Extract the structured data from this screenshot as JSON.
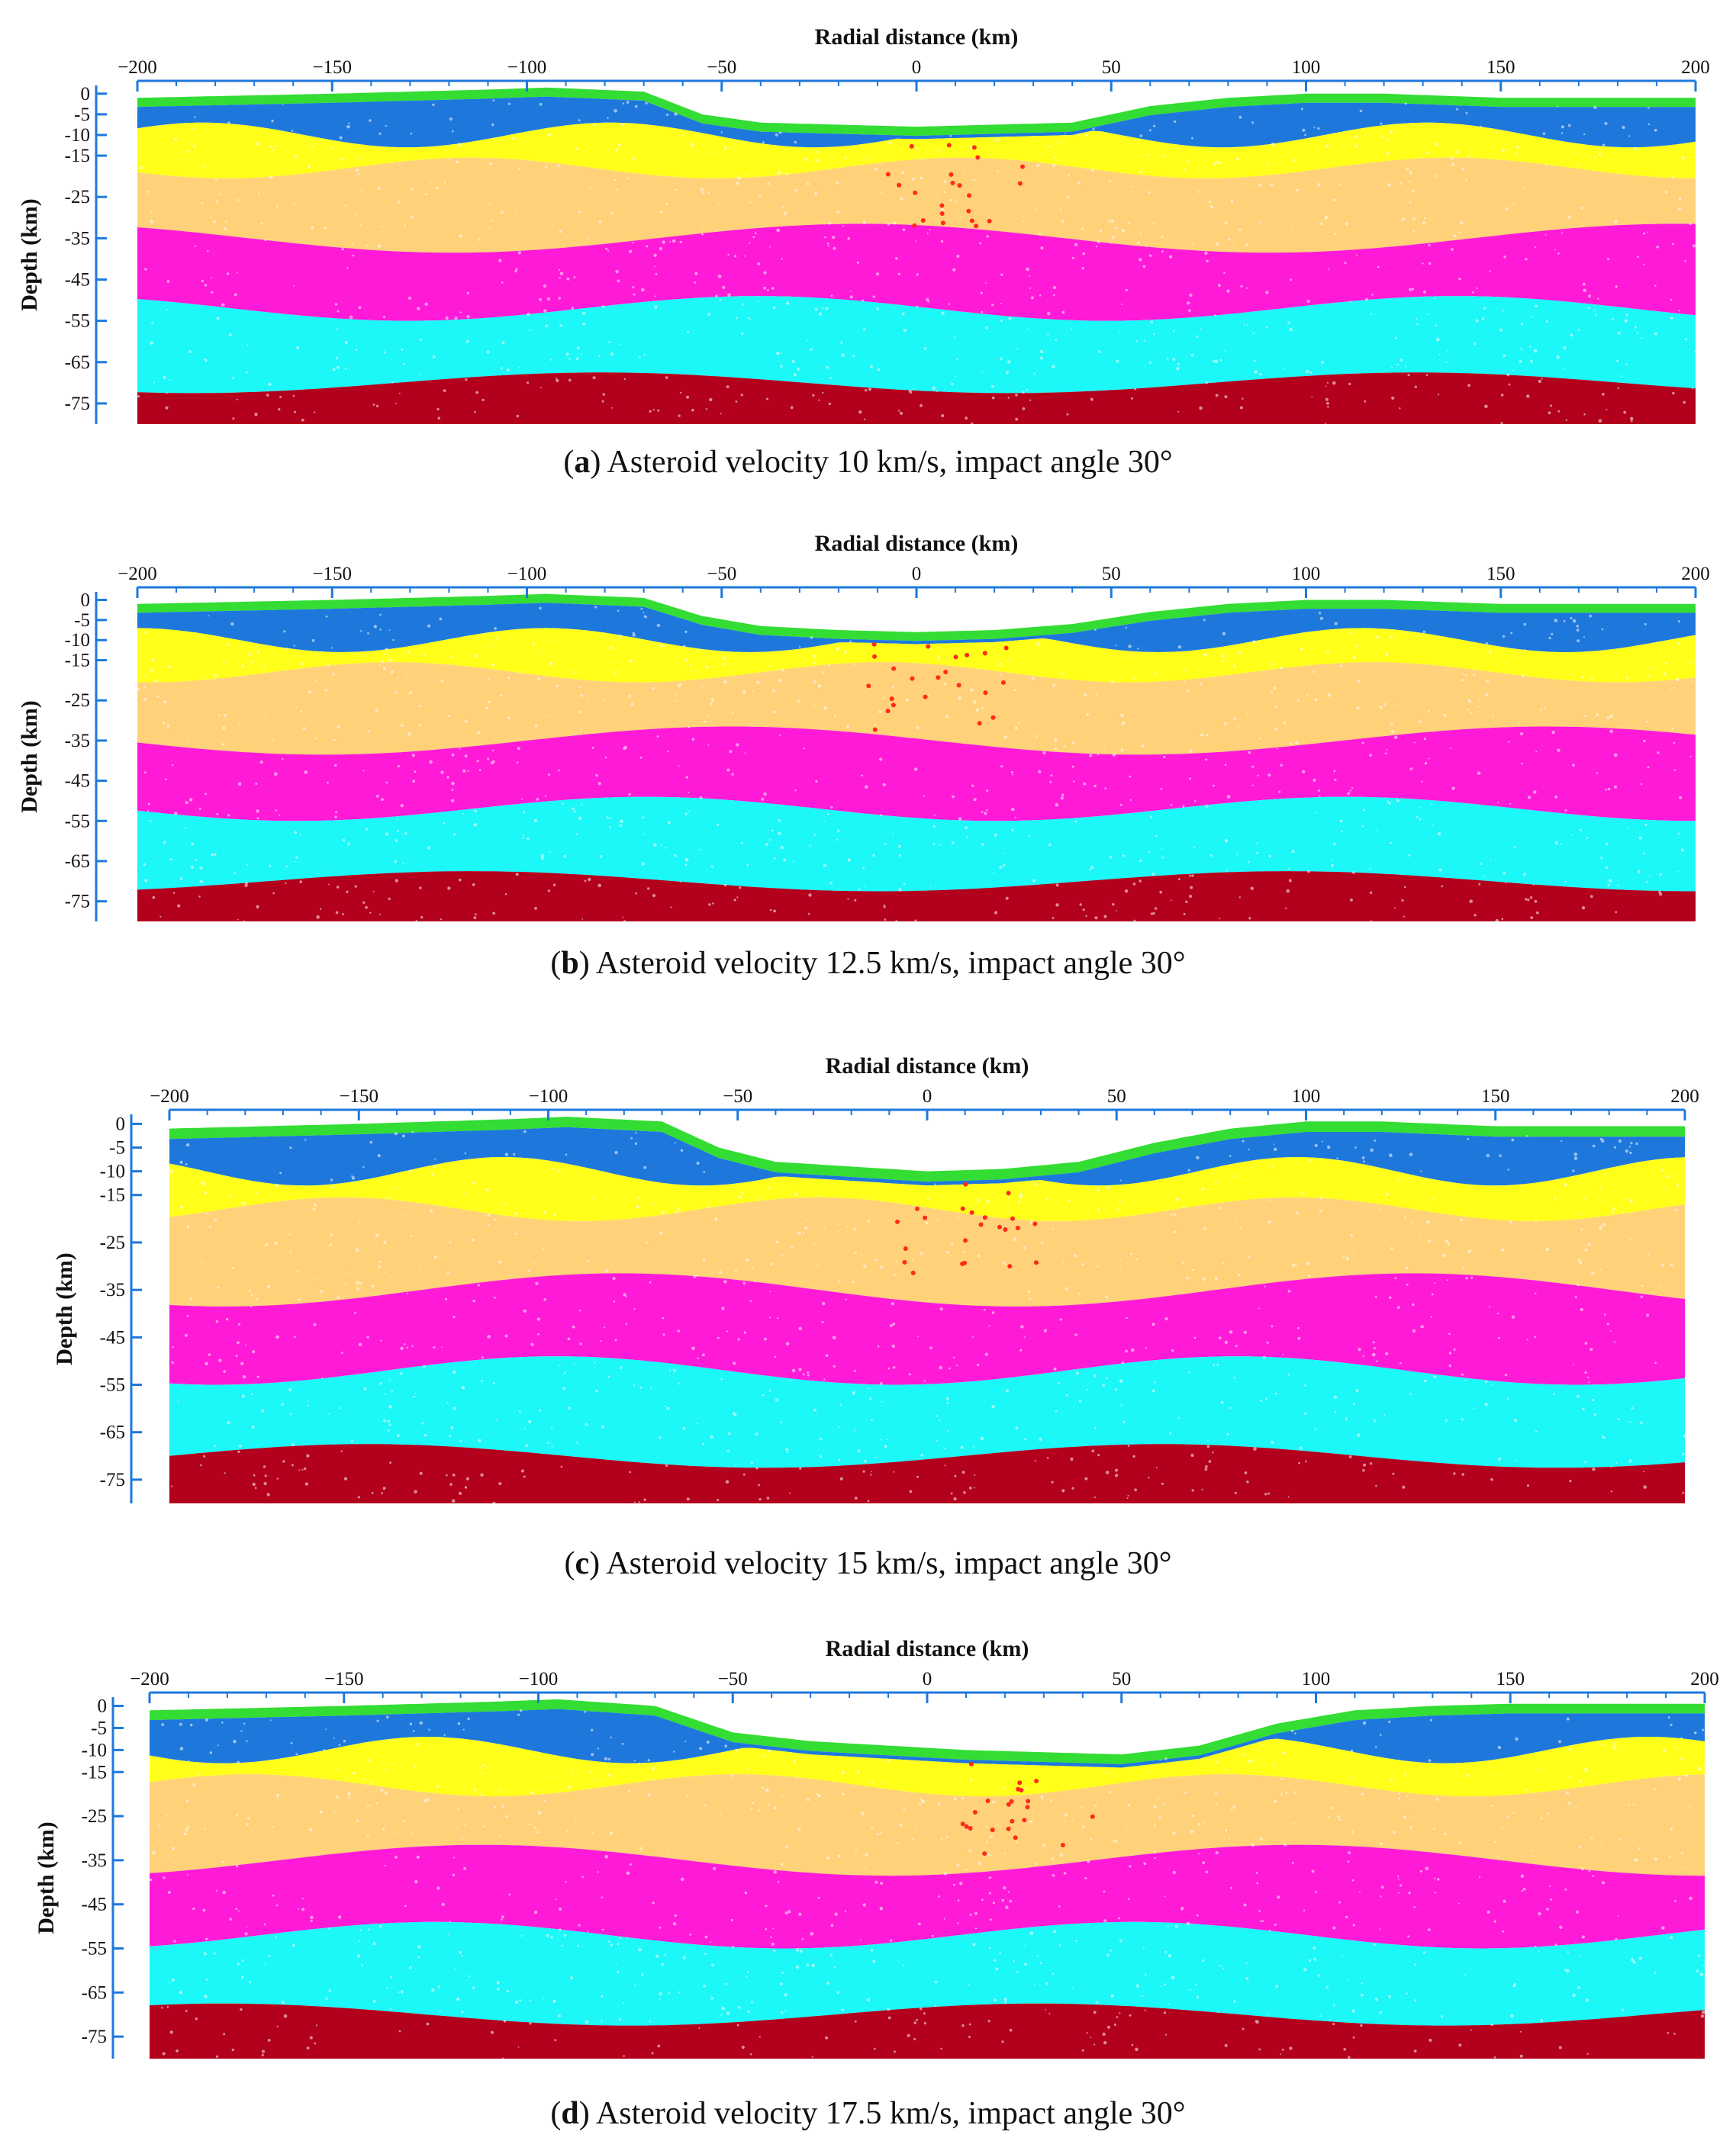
{
  "figure": {
    "layer_colors": {
      "surface_green": "#33dd33",
      "upper_blue": "#1e78dc",
      "yellow": "#ffff1a",
      "tan": "#ffd27a",
      "magenta": "#ff1ad8",
      "cyan": "#1cf7f7",
      "dark_red": "#b2001d",
      "ejecta_red": "#ff2a1a",
      "axis_blue": "#1e78dc"
    }
  },
  "chart_data": [
    {
      "type": "scatter",
      "panel_letter": "a",
      "caption_text": " Asteroid velocity 10 km/s, impact angle 30°",
      "xlabel": "Radial distance (km)",
      "ylabel": "Depth (km)",
      "xlim": [
        -200,
        200
      ],
      "ylim": [
        -80,
        2
      ],
      "x_ticks": [
        "−200",
        "−150",
        "−100",
        "−50",
        "0",
        "50",
        "100",
        "150",
        "200"
      ],
      "y_ticks": [
        "0",
        "-5",
        "-10",
        "-15",
        "-25",
        "-35",
        "-45",
        "-55",
        "-65",
        "-75"
      ],
      "surface_profile": {
        "x": [
          -200,
          -150,
          -110,
          -95,
          -70,
          -55,
          -40,
          -20,
          0,
          20,
          40,
          60,
          80,
          100,
          120,
          150,
          200
        ],
        "y": [
          -1,
          0,
          1,
          1.5,
          0.5,
          -5,
          -7,
          -7.5,
          -8,
          -7.5,
          -7,
          -3,
          -1,
          0,
          0,
          -1,
          -1
        ]
      },
      "layer_bottoms": {
        "blue": -10,
        "yellow": -18,
        "tan": -35,
        "magenta": -52,
        "cyan": -70,
        "dark_red": -80
      },
      "ejecta_center_x": 10
    },
    {
      "type": "scatter",
      "panel_letter": "b",
      "caption_text": " Asteroid velocity 12.5 km/s, impact angle 30°",
      "xlabel": "Radial distance (km)",
      "ylabel": "Depth (km)",
      "xlim": [
        -200,
        200
      ],
      "ylim": [
        -80,
        2
      ],
      "x_ticks": [
        "−200",
        "−150",
        "−100",
        "−50",
        "0",
        "50",
        "100",
        "150",
        "200"
      ],
      "y_ticks": [
        "0",
        "-5",
        "-10",
        "-15",
        "-25",
        "-35",
        "-45",
        "-55",
        "-65",
        "-75"
      ],
      "surface_profile": {
        "x": [
          -200,
          -150,
          -110,
          -95,
          -70,
          -55,
          -40,
          -20,
          0,
          20,
          40,
          60,
          80,
          100,
          120,
          150,
          200
        ],
        "y": [
          -1,
          0,
          1,
          1.5,
          0.5,
          -4,
          -6.5,
          -7.5,
          -8,
          -7.5,
          -6,
          -3,
          -1,
          0,
          0,
          -1,
          -1
        ]
      },
      "layer_bottoms": {
        "blue": -10,
        "yellow": -18,
        "tan": -35,
        "magenta": -52,
        "cyan": -70,
        "dark_red": -80
      },
      "ejecta_center_x": 5
    },
    {
      "type": "scatter",
      "panel_letter": "c",
      "caption_text": " Asteroid velocity 15 km/s, impact angle 30°",
      "xlabel": "Radial distance (km)",
      "ylabel": "Depth (km)",
      "xlim": [
        -200,
        200
      ],
      "ylim": [
        -80,
        2
      ],
      "x_ticks": [
        "−200",
        "−150",
        "−100",
        "−50",
        "0",
        "50",
        "100",
        "150",
        "200"
      ],
      "y_ticks": [
        "0",
        "-5",
        "-10",
        "-15",
        "-25",
        "-35",
        "-45",
        "-55",
        "-65",
        "-75"
      ],
      "surface_profile": {
        "x": [
          -200,
          -150,
          -110,
          -95,
          -70,
          -55,
          -40,
          -20,
          0,
          20,
          40,
          60,
          80,
          100,
          120,
          150,
          200
        ],
        "y": [
          -1,
          0,
          1,
          1.5,
          0.5,
          -5,
          -8,
          -9,
          -10,
          -9.5,
          -8,
          -4,
          -1,
          0.5,
          0.5,
          -0.5,
          -0.5
        ]
      },
      "layer_bottoms": {
        "blue": -10,
        "yellow": -18,
        "tan": -35,
        "magenta": -52,
        "cyan": -70,
        "dark_red": -80
      },
      "ejecta_center_x": 10
    },
    {
      "type": "scatter",
      "panel_letter": "d",
      "caption_text": " Asteroid velocity 17.5 km/s, impact angle 30°",
      "xlabel": "Radial distance (km)",
      "ylabel": "Depth (km)",
      "xlim": [
        -200,
        200
      ],
      "ylim": [
        -80,
        2
      ],
      "x_ticks": [
        "−200",
        "−150",
        "−100",
        "−50",
        "0",
        "50",
        "100",
        "150",
        "200"
      ],
      "y_ticks": [
        "0",
        "-5",
        "-10",
        "-15",
        "-25",
        "-35",
        "-45",
        "-55",
        "-65",
        "-75"
      ],
      "surface_profile": {
        "x": [
          -200,
          -150,
          -110,
          -95,
          -70,
          -50,
          -30,
          -10,
          10,
          30,
          50,
          70,
          90,
          110,
          130,
          150,
          200
        ],
        "y": [
          -1,
          0,
          1,
          1.5,
          0,
          -6,
          -8,
          -9,
          -10,
          -10.5,
          -11,
          -9,
          -4,
          -1,
          0,
          0.5,
          0.5
        ]
      },
      "layer_bottoms": {
        "blue": -10,
        "yellow": -18,
        "tan": -35,
        "magenta": -52,
        "cyan": -70,
        "dark_red": -80
      },
      "ejecta_center_x": 25
    }
  ]
}
